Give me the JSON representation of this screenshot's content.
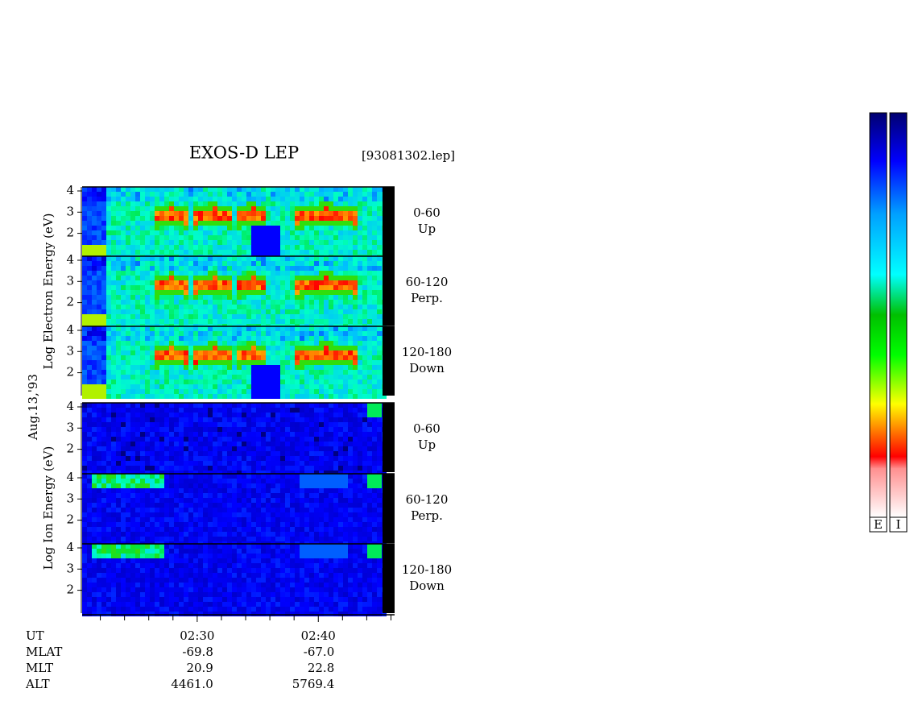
{
  "chart_data": {
    "type": "spectrogram",
    "title": "EXOS-D LEP",
    "file_label": "[93081302.lep]",
    "date_label": "Aug.13,'93",
    "groups": [
      {
        "ylabel": "Log Electron Energy (eV)",
        "panels": [
          {
            "label": "0-60",
            "sublabel": "Up"
          },
          {
            "label": "60-120",
            "sublabel": "Perp."
          },
          {
            "label": "120-180",
            "sublabel": "Down"
          }
        ]
      },
      {
        "ylabel": "Log Ion Energy (eV)",
        "panels": [
          {
            "label": "0-60",
            "sublabel": "Up"
          },
          {
            "label": "60-120",
            "sublabel": "Perp."
          },
          {
            "label": "120-180",
            "sublabel": "Down"
          }
        ]
      }
    ],
    "ylim": [
      0.92,
      4.19
    ],
    "yticks": [
      2,
      3,
      4
    ],
    "xlim": [
      140.5,
      166.3
    ],
    "xticks": [
      {
        "value": 150,
        "label": "02:30"
      },
      {
        "value": 160,
        "label": "02:40"
      }
    ],
    "xminorticks": [
      142,
      144,
      146,
      148,
      152,
      154,
      156,
      158,
      162,
      164,
      166
    ],
    "x_row_label": "UT",
    "orbit": [
      {
        "name": "MLAT",
        "values": [
          "-69.8",
          "-67.0"
        ]
      },
      {
        "name": "MLT",
        "values": [
          "20.9",
          "22.8"
        ]
      },
      {
        "name": "ALT",
        "values": [
          "4461.0",
          "5769.4"
        ]
      }
    ],
    "colorbars": [
      "E",
      "I"
    ]
  }
}
